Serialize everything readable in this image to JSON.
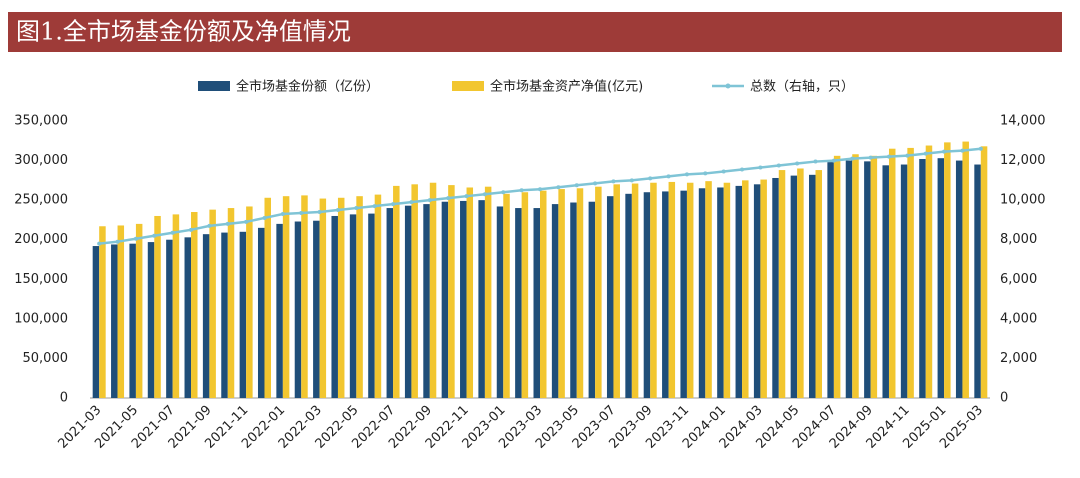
{
  "chart_data": {
    "type": "bar-line",
    "title": "图1.全市场基金份额及净值情况",
    "categories": [
      "2021-03",
      null,
      "2021-05",
      null,
      "2021-07",
      null,
      "2021-09",
      null,
      "2021-11",
      null,
      "2022-01",
      null,
      "2022-03",
      null,
      "2022-05",
      null,
      "2022-07",
      null,
      "2022-09",
      null,
      "2022-11",
      null,
      "2023-01",
      null,
      "2023-03",
      null,
      "2023-05",
      null,
      "2023-07",
      null,
      "2023-09",
      null,
      "2023-11",
      null,
      "2024-01",
      null,
      "2024-03",
      null,
      "2024-05",
      null,
      "2024-07",
      null,
      "2024-09",
      null,
      "2024-11",
      null,
      "2025-01",
      null,
      "2025-03"
    ],
    "series": [
      {
        "name": "全市场基金份额（亿份）",
        "color": "#1f4e79",
        "values": [
          192000,
          194000,
          195000,
          197000,
          200000,
          203000,
          207000,
          209000,
          210000,
          215000,
          220000,
          223000,
          224000,
          230000,
          232000,
          233000,
          240000,
          243000,
          245000,
          248000,
          249000,
          250000,
          242000,
          240000,
          240000,
          245000,
          247000,
          248000,
          255000,
          258000,
          260000,
          261000,
          262000,
          265000,
          266000,
          268000,
          270000,
          278000,
          281000,
          282000,
          298000,
          300000,
          299000,
          294000,
          295000,
          302000,
          303000,
          300000,
          295000
        ]
      },
      {
        "name": "全市场基金资产净值(亿元)",
        "color": "#f2c62f",
        "values": [
          217000,
          218000,
          220000,
          230000,
          232000,
          235000,
          238000,
          240000,
          242000,
          253000,
          255000,
          256000,
          252000,
          253000,
          255000,
          257000,
          268000,
          270000,
          272000,
          269000,
          266000,
          267000,
          258000,
          260000,
          262000,
          264000,
          265000,
          267000,
          270000,
          271000,
          272000,
          273000,
          272000,
          274000,
          272000,
          275000,
          276000,
          288000,
          290000,
          288000,
          306000,
          308000,
          306000,
          315000,
          316000,
          319000,
          323000,
          324000,
          318000
        ]
      },
      {
        "name": "总数（右轴，只）",
        "color": "#7fc4d6",
        "axis": "y2",
        "values": [
          7800,
          7900,
          8050,
          8200,
          8350,
          8500,
          8700,
          8800,
          8900,
          9100,
          9300,
          9350,
          9400,
          9500,
          9600,
          9700,
          9800,
          9900,
          10000,
          10100,
          10200,
          10300,
          10400,
          10500,
          10550,
          10650,
          10750,
          10850,
          10950,
          11000,
          11100,
          11200,
          11300,
          11350,
          11450,
          11550,
          11650,
          11750,
          11850,
          11950,
          12000,
          12100,
          12150,
          12200,
          12250,
          12350,
          12450,
          12500,
          12600
        ]
      }
    ],
    "ylim": [
      0,
      350000
    ],
    "yticks": [
      0,
      {
        "value": 50000,
        "label": "50,000"
      },
      {
        "value": 100000,
        "label": "100,000"
      },
      {
        "value": 150000,
        "label": "150,000"
      },
      {
        "value": 200000,
        "label": "200,000"
      },
      {
        "value": 250000,
        "label": "250,000"
      },
      {
        "value": 300000,
        "label": "300,000"
      },
      {
        "value": 350000,
        "label": "350,000"
      }
    ],
    "y2lim": [
      0,
      14000
    ],
    "y2ticks": [
      0,
      {
        "value": 2000,
        "label": "2,000"
      },
      {
        "value": 4000,
        "label": "4,000"
      },
      {
        "value": 6000,
        "label": "6,000"
      },
      {
        "value": 8000,
        "label": "8,000"
      },
      {
        "value": 10000,
        "label": "10,000"
      },
      {
        "value": 12000,
        "label": "12,000"
      },
      {
        "value": 14000,
        "label": "14,000"
      }
    ],
    "banner_color": "#9e3b38"
  }
}
